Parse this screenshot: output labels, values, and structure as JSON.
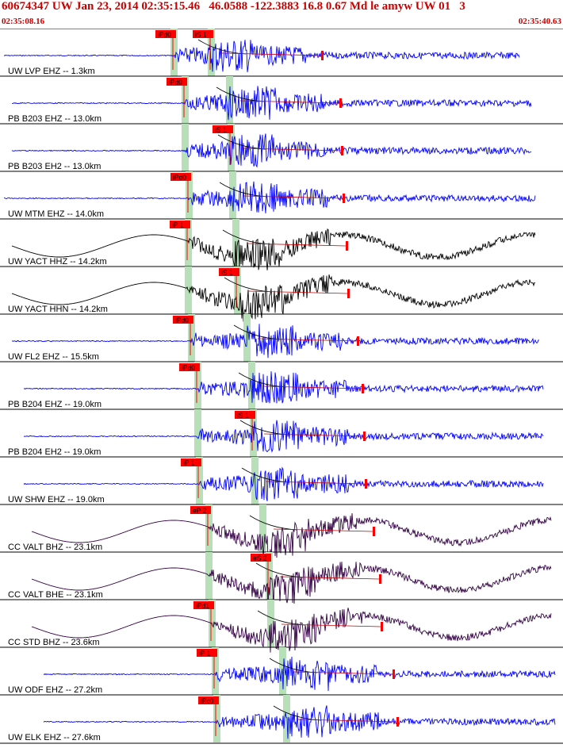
{
  "header": {
    "title": "60674347 UW Jan 23, 2014 02:35:15.46   46.0588 -122.3883 16.8 0.67 Md le amyw UW 01   3",
    "start_time": "02:35:08.16",
    "end_time": "02:35:40.63"
  },
  "colors": {
    "title": "#cc0000",
    "trace_blue": "#0000ff",
    "trace_black": "#000000",
    "trace_purple": "#330044",
    "phase_bar": "#b8e0b8",
    "pick": "#ff0000",
    "fit_curve": "#000000",
    "coda_fit": "#cc0000"
  },
  "channels": [
    {
      "label": "UW LVP EHZ -- 1.3km",
      "color": "trace_blue",
      "picks": [
        "iPd0",
        "iS 1"
      ]
    },
    {
      "label": "PB B203 EHZ -- 13.0km",
      "color": "trace_blue",
      "picks": [
        "iPd0"
      ]
    },
    {
      "label": "PB B203 EH2 -- 13.0km",
      "color": "trace_blue",
      "picks": [
        "iS 1"
      ]
    },
    {
      "label": "UW MTM EHZ -- 14.0km",
      "color": "trace_blue",
      "picks": [
        "iPd0"
      ]
    },
    {
      "label": "UW YACT HHZ -- 14.2km",
      "color": "trace_black",
      "picks": [
        "iP 1"
      ]
    },
    {
      "label": "UW YACT HHN -- 14.2km",
      "color": "trace_black",
      "picks": [
        "iS 1"
      ]
    },
    {
      "label": "UW FL2 EHZ -- 15.5km",
      "color": "trace_blue",
      "picks": [
        "iPd0"
      ]
    },
    {
      "label": "PB B204 EHZ -- 19.0km",
      "color": "trace_blue",
      "picks": [
        "iPd0"
      ]
    },
    {
      "label": "PB B204 EH2 -- 19.0km",
      "color": "trace_blue",
      "picks": [
        "iS 1"
      ]
    },
    {
      "label": "UW SHW EHZ -- 19.0km",
      "color": "trace_blue",
      "picks": [
        "iP 1"
      ]
    },
    {
      "label": "CC VALT BHZ -- 23.1km",
      "color": "trace_purple",
      "picks": [
        "eP 2"
      ]
    },
    {
      "label": "CC VALT BHE -- 23.1km",
      "color": "trace_purple",
      "picks": [
        "eS 2"
      ]
    },
    {
      "label": "CC STD BHZ -- 23.6km",
      "color": "trace_purple",
      "picks": [
        "iPd1"
      ]
    },
    {
      "label": "UW ODF EHZ -- 27.2km",
      "color": "trace_blue",
      "picks": [
        "iP 1"
      ]
    },
    {
      "label": "UW ELK EHZ -- 27.6km",
      "color": "trace_blue",
      "picks": [
        "iPc0"
      ]
    }
  ]
}
